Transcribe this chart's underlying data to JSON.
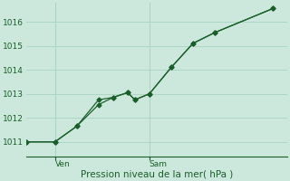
{
  "xlabel": "Pression niveau de la mer( hPa )",
  "background_color": "#cce8dc",
  "grid_color": "#a8d4c0",
  "line_color": "#1a5e2a",
  "xlim": [
    0,
    18
  ],
  "ylim": [
    1010.4,
    1016.8
  ],
  "yticks": [
    1011,
    1012,
    1013,
    1014,
    1015,
    1016
  ],
  "xtick_positions": [
    2,
    8.5
  ],
  "xtick_labels": [
    "Ven",
    "Sam"
  ],
  "vline_positions": [
    2,
    8.5
  ],
  "series1_x": [
    0,
    2,
    3.5,
    5,
    6,
    7,
    7.5,
    8.5,
    10,
    11.5,
    13,
    17
  ],
  "series1_y": [
    1011.0,
    1011.0,
    1011.65,
    1012.75,
    1012.85,
    1013.05,
    1012.75,
    1013.0,
    1014.1,
    1015.1,
    1015.55,
    1016.55
  ],
  "series2_x": [
    0,
    2,
    3.5,
    5,
    6,
    7,
    7.5,
    8.5,
    10,
    11.5,
    13,
    17
  ],
  "series2_y": [
    1011.0,
    1011.0,
    1011.65,
    1012.55,
    1012.85,
    1013.05,
    1012.75,
    1013.0,
    1014.1,
    1015.1,
    1015.55,
    1016.55
  ],
  "marker_size": 2.5,
  "line_width": 0.9,
  "tick_label_fontsize": 6.5,
  "xlabel_fontsize": 7.5
}
